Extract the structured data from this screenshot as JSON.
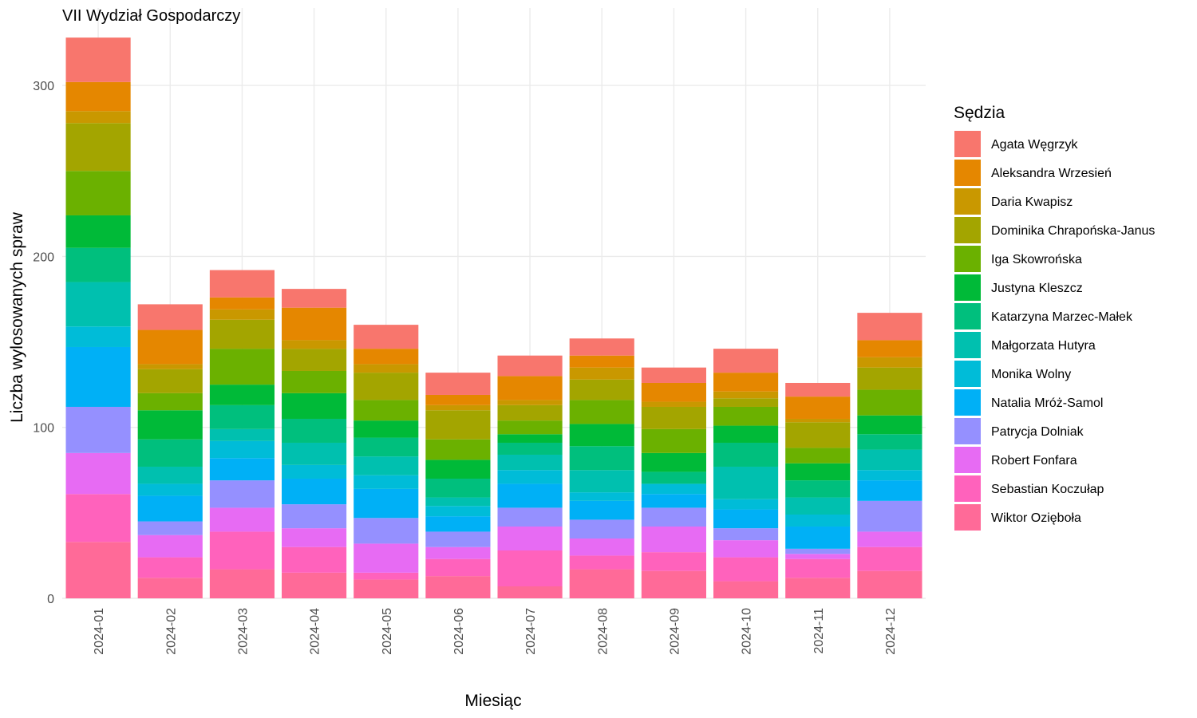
{
  "chart_data": {
    "type": "bar",
    "stacked": true,
    "title": "VII Wydział Gospodarczy",
    "xlabel": "Miesiąc",
    "ylabel": "Liczba wylosowanych spraw",
    "ylim": [
      0,
      330
    ],
    "yticks": [
      0,
      100,
      200,
      300
    ],
    "grid": true,
    "legend_position": "right",
    "legend_title": "Sędzia",
    "categories": [
      "2024-01",
      "2024-02",
      "2024-03",
      "2024-04",
      "2024-05",
      "2024-06",
      "2024-07",
      "2024-08",
      "2024-09",
      "2024-10",
      "2024-11",
      "2024-12"
    ],
    "series": [
      {
        "name": "Agata Węgrzyk",
        "color": "#F8766D",
        "values": [
          26,
          15,
          16,
          11,
          14,
          13,
          12,
          10,
          9,
          14,
          8,
          16
        ]
      },
      {
        "name": "Aleksandra Wrzesień",
        "color": "#E58700",
        "values": [
          17,
          20,
          7,
          19,
          9,
          6,
          14,
          7,
          11,
          11,
          13,
          10
        ]
      },
      {
        "name": "Daria Kwapisz",
        "color": "#C99800",
        "values": [
          7,
          3,
          6,
          5,
          5,
          3,
          3,
          7,
          3,
          4,
          2,
          6
        ]
      },
      {
        "name": "Dominika Chrapońska-Janus",
        "color": "#A3A500",
        "values": [
          28,
          14,
          17,
          13,
          16,
          17,
          9,
          12,
          13,
          5,
          15,
          13
        ]
      },
      {
        "name": "Iga Skowrońska",
        "color": "#6BB100",
        "values": [
          26,
          10,
          21,
          13,
          12,
          12,
          8,
          14,
          14,
          11,
          9,
          15
        ]
      },
      {
        "name": "Justyna Kleszcz",
        "color": "#00BA38",
        "values": [
          19,
          17,
          12,
          15,
          10,
          11,
          5,
          13,
          11,
          10,
          10,
          11
        ]
      },
      {
        "name": "Katarzyna Marzec-Małek",
        "color": "#00BF7D",
        "values": [
          20,
          16,
          14,
          14,
          11,
          11,
          7,
          14,
          7,
          14,
          10,
          9
        ]
      },
      {
        "name": "Małgorzata Hutyra",
        "color": "#00C0AF",
        "values": [
          26,
          10,
          7,
          13,
          11,
          5,
          9,
          13,
          0,
          19,
          10,
          12
        ]
      },
      {
        "name": "Monika Wolny",
        "color": "#00BCD8",
        "values": [
          12,
          7,
          10,
          8,
          8,
          6,
          8,
          5,
          6,
          6,
          7,
          6
        ]
      },
      {
        "name": "Natalia Mróż-Samol",
        "color": "#00B0F6",
        "values": [
          35,
          15,
          13,
          15,
          17,
          9,
          14,
          11,
          8,
          11,
          13,
          12
        ]
      },
      {
        "name": "Patrycja Dolniak",
        "color": "#9590FF",
        "values": [
          27,
          8,
          16,
          14,
          15,
          9,
          11,
          11,
          11,
          7,
          3,
          18
        ]
      },
      {
        "name": "Robert Fonfara",
        "color": "#E76BF3",
        "values": [
          24,
          13,
          14,
          11,
          17,
          7,
          14,
          10,
          15,
          10,
          3,
          9
        ]
      },
      {
        "name": "Sebastian Koczułap",
        "color": "#FF62BC",
        "values": [
          28,
          12,
          22,
          15,
          4,
          10,
          21,
          8,
          11,
          14,
          11,
          14
        ]
      },
      {
        "name": "Wiktor Ozięboła",
        "color": "#FF6A98",
        "values": [
          33,
          12,
          17,
          15,
          11,
          13,
          7,
          17,
          16,
          10,
          12,
          16
        ]
      }
    ]
  }
}
